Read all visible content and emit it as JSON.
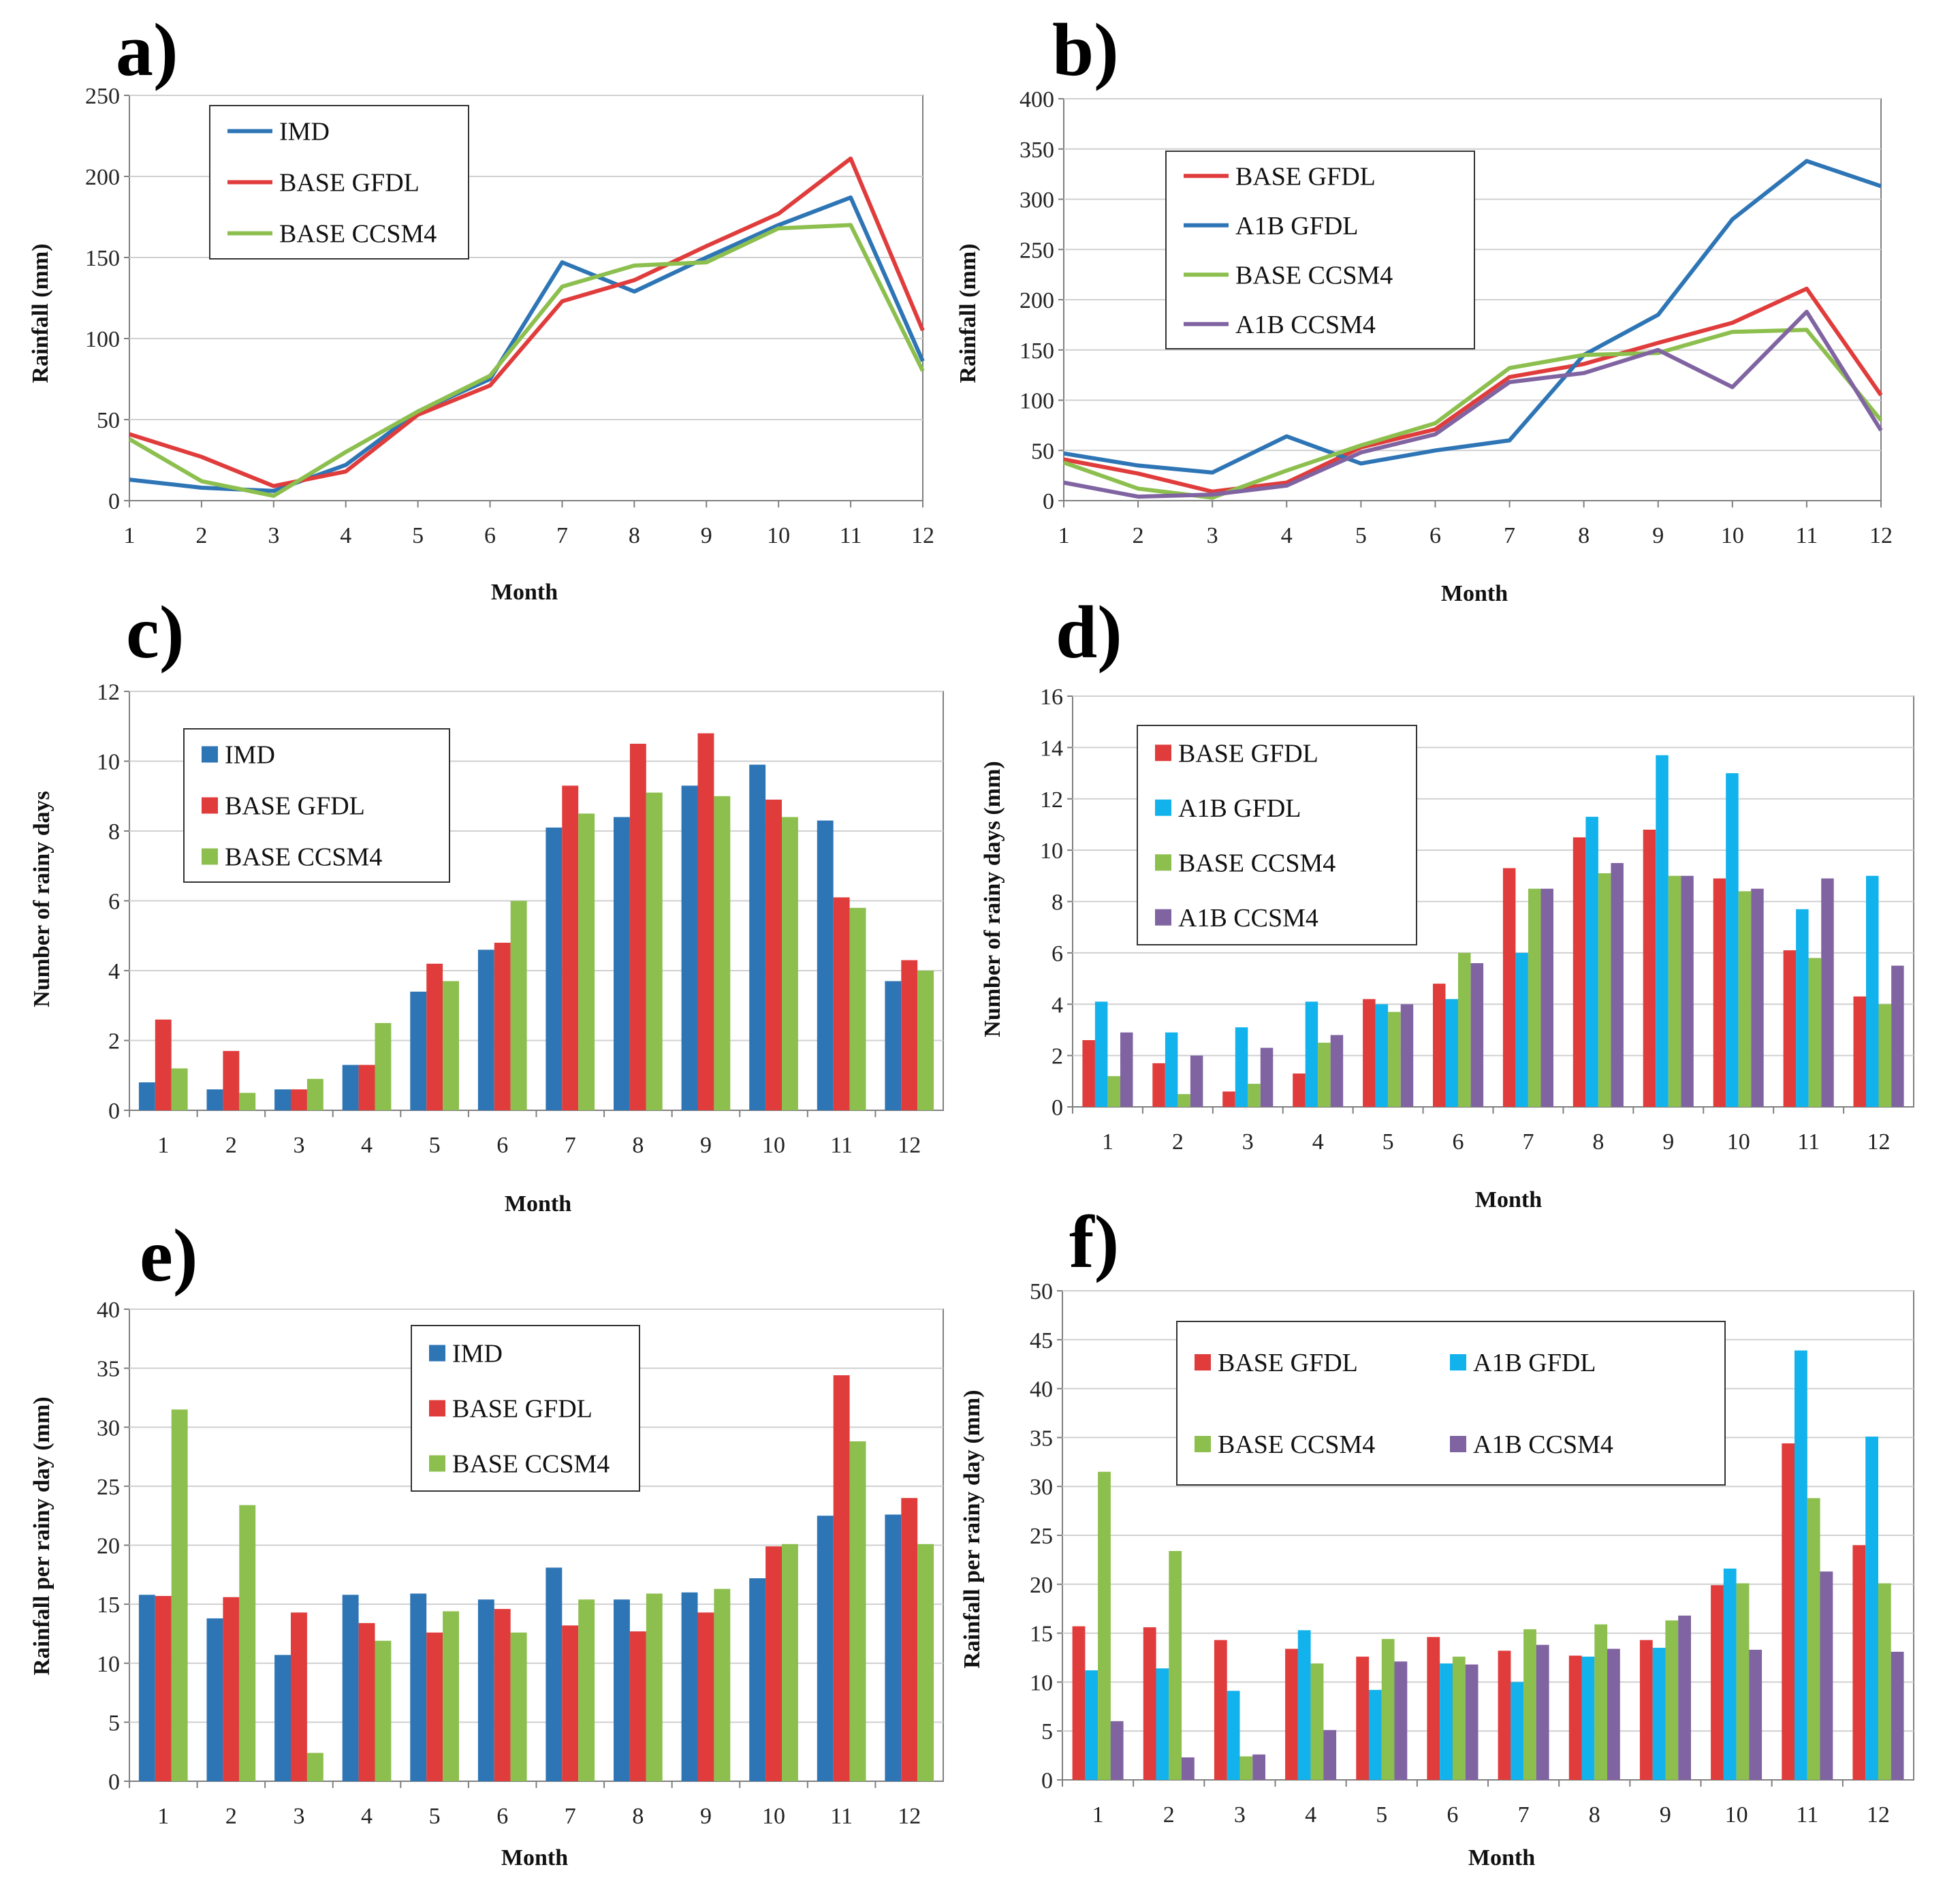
{
  "colors": {
    "imd": "#2e75b6",
    "red": "#e03c3c",
    "green": "#8cbf4e",
    "cyan": "#12b2ec",
    "purple": "#8064a2",
    "grid": "#d0d0d0",
    "frame": "#7f7f7f"
  },
  "chart_data": [
    {
      "id": "a",
      "type": "line",
      "panel_label": "a)",
      "xlabel": "Month",
      "ylabel": "Rainfall (mm)",
      "categories": [
        "1",
        "2",
        "3",
        "4",
        "5",
        "6",
        "7",
        "8",
        "9",
        "10",
        "11",
        "12"
      ],
      "ylim": [
        0,
        250
      ],
      "yticks": [
        0,
        50,
        100,
        150,
        200,
        250
      ],
      "legend_position": "top-left",
      "series": [
        {
          "name": "IMD",
          "color": "#2e75b6",
          "values": [
            13,
            8,
            6,
            22,
            55,
            75,
            147,
            129,
            150,
            170,
            187,
            86
          ]
        },
        {
          "name": "BASE GFDL",
          "color": "#e03c3c",
          "values": [
            41,
            27,
            9,
            18,
            53,
            71,
            123,
            136,
            157,
            177,
            211,
            105
          ]
        },
        {
          "name": "BASE CCSM4",
          "color": "#8cbf4e",
          "values": [
            38,
            12,
            3,
            30,
            55,
            77,
            132,
            145,
            147,
            168,
            170,
            80
          ]
        }
      ]
    },
    {
      "id": "b",
      "type": "line",
      "panel_label": "b)",
      "xlabel": "Month",
      "ylabel": "Rainfall (mm)",
      "categories": [
        "1",
        "2",
        "3",
        "4",
        "5",
        "6",
        "7",
        "8",
        "9",
        "10",
        "11",
        "12"
      ],
      "ylim": [
        0,
        400
      ],
      "yticks": [
        0,
        50,
        100,
        150,
        200,
        250,
        300,
        350,
        400
      ],
      "legend_position": "top-left",
      "series": [
        {
          "name": "BASE GFDL",
          "color": "#e03c3c",
          "values": [
            41,
            27,
            9,
            18,
            53,
            71,
            123,
            136,
            157,
            177,
            211,
            105
          ]
        },
        {
          "name": "A1B GFDL",
          "color": "#2e75b6",
          "values": [
            47,
            35,
            28,
            64,
            37,
            50,
            60,
            145,
            185,
            280,
            338,
            313
          ]
        },
        {
          "name": "BASE CCSM4",
          "color": "#8cbf4e",
          "values": [
            38,
            12,
            3,
            30,
            55,
            77,
            132,
            145,
            147,
            168,
            170,
            80
          ]
        },
        {
          "name": "A1B CCSM4",
          "color": "#8064a2",
          "values": [
            18,
            4,
            6,
            15,
            48,
            66,
            118,
            127,
            150,
            113,
            188,
            70
          ]
        }
      ]
    },
    {
      "id": "c",
      "type": "bar",
      "panel_label": "c)",
      "xlabel": "Month",
      "ylabel": "Number of rainy days",
      "categories": [
        "1",
        "2",
        "3",
        "4",
        "5",
        "6",
        "7",
        "8",
        "9",
        "10",
        "11",
        "12"
      ],
      "ylim": [
        0,
        12
      ],
      "yticks": [
        0,
        2,
        4,
        6,
        8,
        10,
        12
      ],
      "legend_position": "top-left",
      "series": [
        {
          "name": "IMD",
          "color": "#2e75b6",
          "values": [
            0.8,
            0.6,
            0.6,
            1.3,
            3.4,
            4.6,
            8.1,
            8.4,
            9.3,
            9.9,
            8.3,
            3.7
          ]
        },
        {
          "name": "BASE GFDL",
          "color": "#e03c3c",
          "values": [
            2.6,
            1.7,
            0.6,
            1.3,
            4.2,
            4.8,
            9.3,
            10.5,
            10.8,
            8.9,
            6.1,
            4.3
          ]
        },
        {
          "name": "BASE CCSM4",
          "color": "#8cbf4e",
          "values": [
            1.2,
            0.5,
            0.9,
            2.5,
            3.7,
            6.0,
            8.5,
            9.1,
            9.0,
            8.4,
            5.8,
            4.0
          ]
        }
      ]
    },
    {
      "id": "d",
      "type": "bar",
      "panel_label": "d)",
      "xlabel": "Month",
      "ylabel": "Number of rainy days  (mm)",
      "categories": [
        "1",
        "2",
        "3",
        "4",
        "5",
        "6",
        "7",
        "8",
        "9",
        "10",
        "11",
        "12"
      ],
      "ylim": [
        0,
        16
      ],
      "yticks": [
        0,
        2,
        4,
        6,
        8,
        10,
        12,
        14,
        16
      ],
      "legend_position": "top-left",
      "series": [
        {
          "name": "BASE GFDL",
          "color": "#e03c3c",
          "values": [
            2.6,
            1.7,
            0.6,
            1.3,
            4.2,
            4.8,
            9.3,
            10.5,
            10.8,
            8.9,
            6.1,
            4.3
          ]
        },
        {
          "name": "A1B GFDL",
          "color": "#12b2ec",
          "values": [
            4.1,
            2.9,
            3.1,
            4.1,
            4.0,
            4.2,
            6.0,
            11.3,
            13.7,
            13.0,
            7.7,
            9.0
          ]
        },
        {
          "name": "BASE CCSM4",
          "color": "#8cbf4e",
          "values": [
            1.2,
            0.5,
            0.9,
            2.5,
            3.7,
            6.0,
            8.5,
            9.1,
            9.0,
            8.4,
            5.8,
            4.0
          ]
        },
        {
          "name": "A1B CCSM4",
          "color": "#8064a2",
          "values": [
            2.9,
            2.0,
            2.3,
            2.8,
            4.0,
            5.6,
            8.5,
            9.5,
            9.0,
            8.5,
            8.9,
            5.5
          ]
        }
      ]
    },
    {
      "id": "e",
      "type": "bar",
      "panel_label": "e)",
      "xlabel": "Month",
      "ylabel": "Rainfall per rainy day (mm)",
      "categories": [
        "1",
        "2",
        "3",
        "4",
        "5",
        "6",
        "7",
        "8",
        "9",
        "10",
        "11",
        "12"
      ],
      "ylim": [
        0,
        40
      ],
      "yticks": [
        0,
        5,
        10,
        15,
        20,
        25,
        30,
        35,
        40
      ],
      "legend_position": "top-center",
      "series": [
        {
          "name": "IMD",
          "color": "#2e75b6",
          "values": [
            15.8,
            13.8,
            10.7,
            15.8,
            15.9,
            15.4,
            18.1,
            15.4,
            16.0,
            17.2,
            22.5,
            22.6
          ]
        },
        {
          "name": "BASE GFDL",
          "color": "#e03c3c",
          "values": [
            15.7,
            15.6,
            14.3,
            13.4,
            12.6,
            14.6,
            13.2,
            12.7,
            14.3,
            19.9,
            34.4,
            24.0
          ]
        },
        {
          "name": "BASE CCSM4",
          "color": "#8cbf4e",
          "values": [
            31.5,
            23.4,
            2.4,
            11.9,
            14.4,
            12.6,
            15.4,
            15.9,
            16.3,
            20.1,
            28.8,
            20.1
          ]
        }
      ]
    },
    {
      "id": "f",
      "type": "bar",
      "panel_label": "f)",
      "xlabel": "Month",
      "ylabel": "Rainfall per rainy day (mm)",
      "categories": [
        "1",
        "2",
        "3",
        "4",
        "5",
        "6",
        "7",
        "8",
        "9",
        "10",
        "11",
        "12"
      ],
      "ylim": [
        0,
        50
      ],
      "yticks": [
        0,
        5,
        10,
        15,
        20,
        25,
        30,
        35,
        40,
        45,
        50
      ],
      "legend_position": "top (two columns)",
      "series": [
        {
          "name": "BASE GFDL",
          "color": "#e03c3c",
          "values": [
            15.7,
            15.6,
            14.3,
            13.4,
            12.6,
            14.6,
            13.2,
            12.7,
            14.3,
            19.9,
            34.4,
            24.0
          ]
        },
        {
          "name": "A1B GFDL",
          "color": "#12b2ec",
          "values": [
            11.2,
            11.4,
            9.1,
            15.3,
            9.2,
            11.9,
            10.0,
            12.6,
            13.5,
            21.6,
            43.9,
            35.1
          ]
        },
        {
          "name": "BASE CCSM4",
          "color": "#8cbf4e",
          "values": [
            31.5,
            23.4,
            2.4,
            11.9,
            14.4,
            12.6,
            15.4,
            15.9,
            16.3,
            20.1,
            28.8,
            20.1
          ]
        },
        {
          "name": "A1B CCSM4",
          "color": "#8064a2",
          "values": [
            6.0,
            2.3,
            2.6,
            5.1,
            12.1,
            11.8,
            13.8,
            13.4,
            16.8,
            13.3,
            21.3,
            13.1
          ]
        }
      ]
    }
  ]
}
